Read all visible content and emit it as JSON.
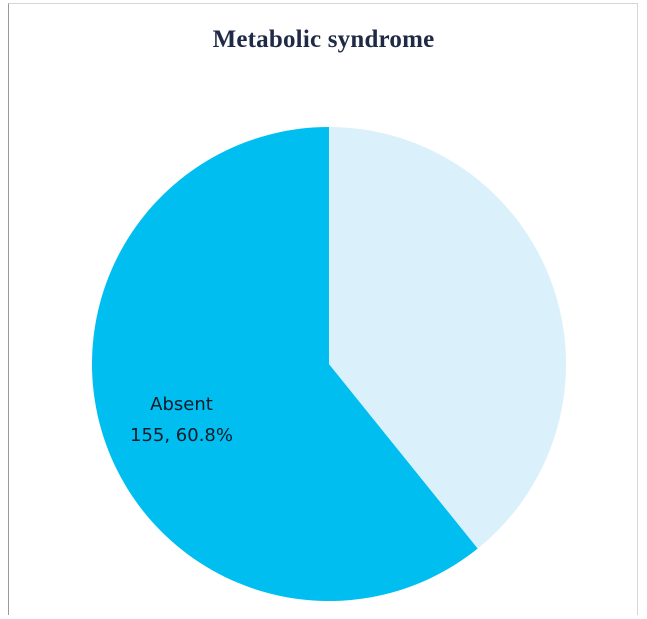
{
  "chart_data": {
    "type": "pie",
    "title": "Metabolic syndrome",
    "slices": [
      {
        "label": "Absent",
        "count": 155,
        "percent": 60.8,
        "percent_label": "155, 60.8%",
        "color": "#00bff0",
        "show_label": true
      },
      {
        "label": "",
        "count": null,
        "percent": 39.2,
        "percent_label": "",
        "color": "#daf0fb",
        "show_label": false
      }
    ],
    "start_angle_deg": 0,
    "direction": "counterclockwise",
    "legend": "none"
  }
}
